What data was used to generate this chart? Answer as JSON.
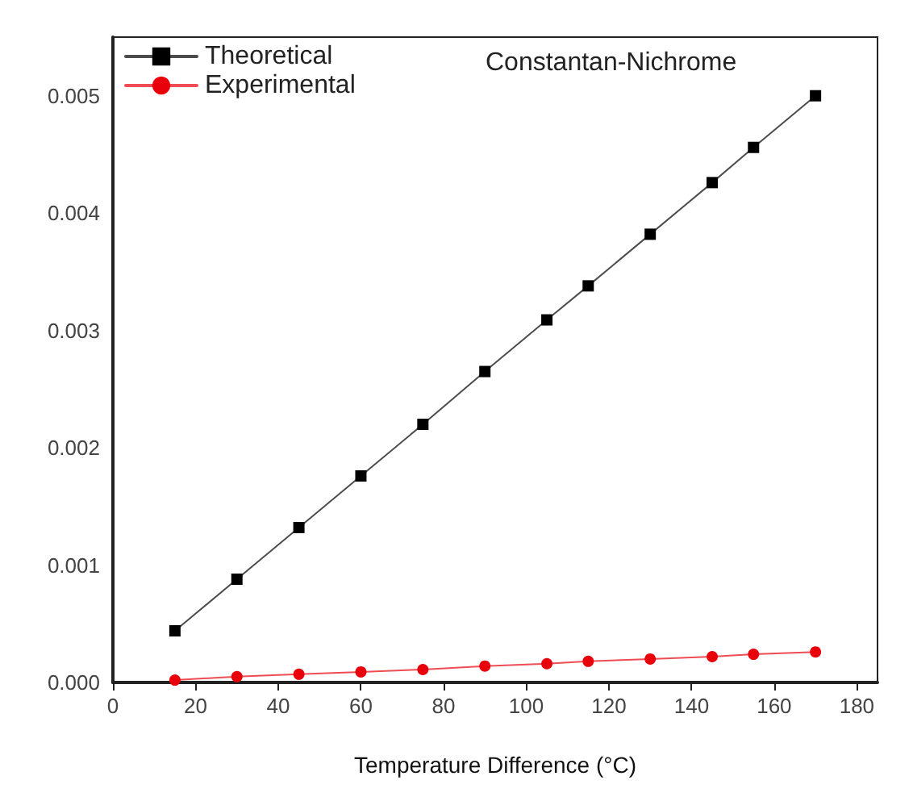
{
  "chart_data": {
    "type": "line",
    "title": "Constantan-Nichrome",
    "xlabel": "Temperature Difference (°C)",
    "x": [
      15,
      30,
      45,
      60,
      75,
      90,
      105,
      115,
      130,
      145,
      155,
      170
    ],
    "series": [
      {
        "name": "Theoretical",
        "color": "#000000",
        "marker": "square",
        "values": [
          0.00044,
          0.00088,
          0.00132,
          0.00176,
          0.0022,
          0.00265,
          0.00309,
          0.00338,
          0.00382,
          0.00426,
          0.00456,
          0.005
        ]
      },
      {
        "name": "Experimental",
        "color": "#e8000b",
        "marker": "circle",
        "values": [
          2e-05,
          5e-05,
          7e-05,
          9e-05,
          0.00011,
          0.00014,
          0.00016,
          0.00018,
          0.0002,
          0.00022,
          0.00024,
          0.00026
        ]
      }
    ],
    "xlim": [
      0,
      185
    ],
    "xticks": [
      0,
      20,
      40,
      60,
      80,
      100,
      120,
      140,
      160,
      180
    ],
    "ylim": [
      0,
      0.0055
    ],
    "yticks": [
      {
        "value": 0,
        "label": "0.000"
      },
      0.001,
      0.002,
      0.003,
      0.004,
      0.005
    ],
    "grid": false,
    "legend": "top left",
    "line_style": "solid"
  }
}
